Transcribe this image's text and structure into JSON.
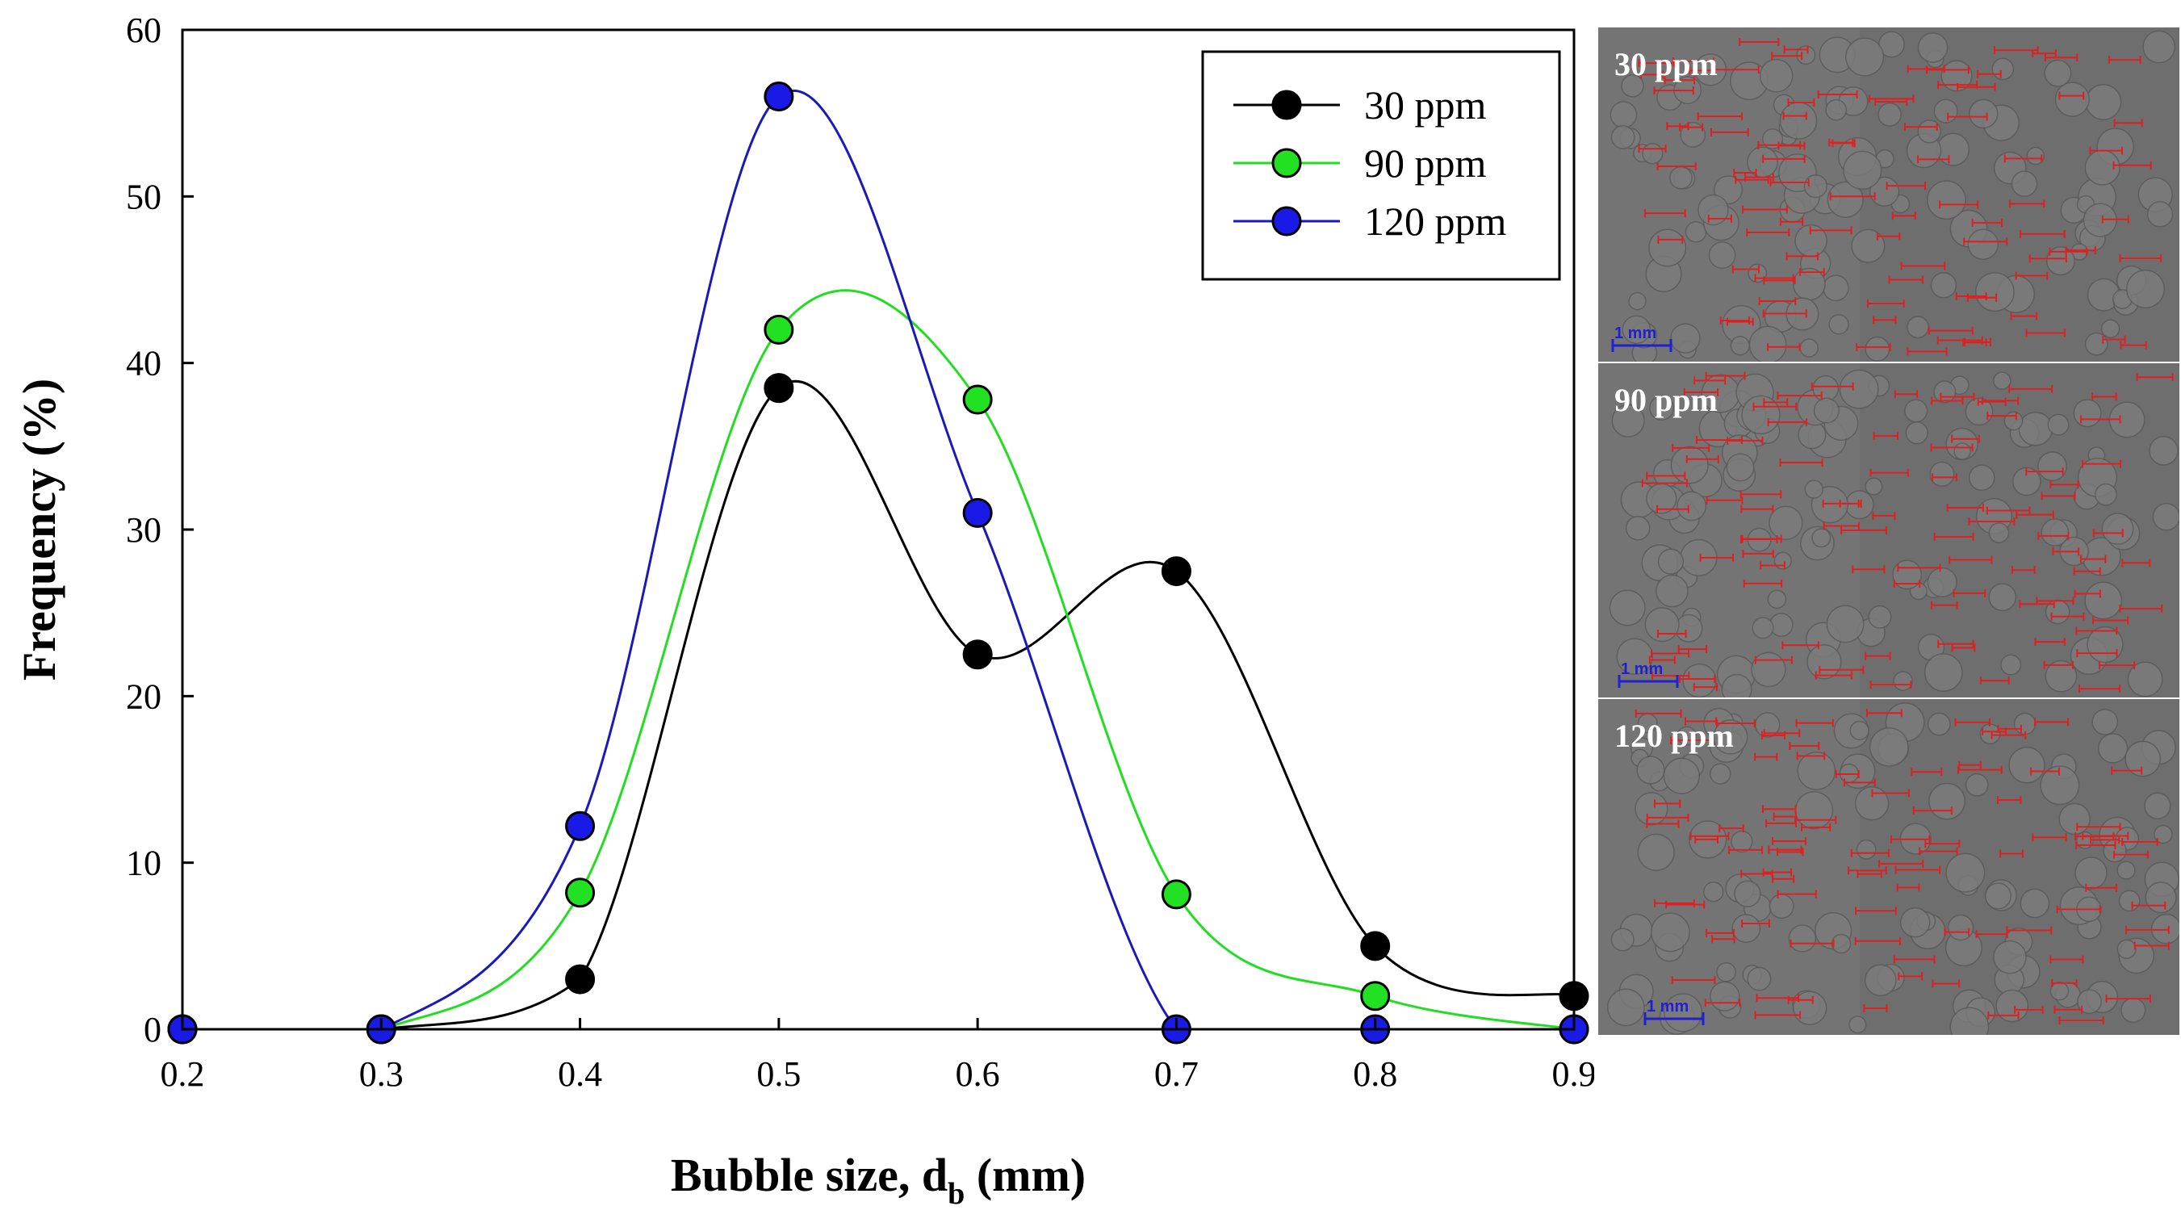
{
  "chart_data": {
    "type": "line",
    "title": "",
    "xlabel": "Bubble size, d",
    "xlabel_subscript": "b",
    "xlabel_suffix": " (mm)",
    "ylabel": "Frequency (%)",
    "xlim": [
      0.2,
      0.9
    ],
    "ylim": [
      0,
      60
    ],
    "x_ticks": [
      "0.2",
      "0.3",
      "0.4",
      "0.5",
      "0.6",
      "0.7",
      "0.8",
      "0.9"
    ],
    "y_ticks": [
      "0",
      "10",
      "20",
      "30",
      "40",
      "50",
      "60"
    ],
    "x": [
      0.2,
      0.3,
      0.4,
      0.5,
      0.6,
      0.7,
      0.8,
      0.9
    ],
    "legend_position": "top-right",
    "series": [
      {
        "name": "30 ppm",
        "color": "#000000",
        "values": [
          0,
          0,
          3,
          38.5,
          22.5,
          27.5,
          5,
          2
        ]
      },
      {
        "name": "90 ppm",
        "color": "#22e022",
        "values": [
          0,
          0,
          8.2,
          42,
          37.8,
          8.1,
          2,
          0
        ]
      },
      {
        "name": "120 ppm",
        "color": "#1a1ae6",
        "values": [
          0,
          0,
          12.2,
          56,
          31,
          0,
          0,
          0
        ]
      }
    ],
    "line_colors": {
      "30 ppm": "#000000",
      "90 ppm": "#22dd22",
      "120 ppm": "#1a1ab8"
    }
  },
  "micrographs": [
    {
      "label": "30 ppm",
      "scale_label": "1 mm"
    },
    {
      "label": "90 ppm",
      "scale_label": "1 mm"
    },
    {
      "label": "120 ppm",
      "scale_label": "1 mm"
    }
  ]
}
